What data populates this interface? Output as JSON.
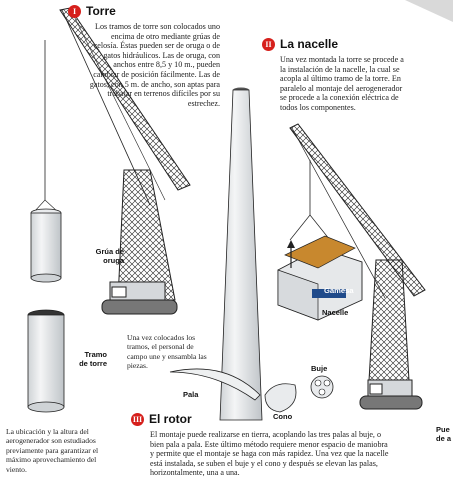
{
  "sections": {
    "torre": {
      "number": "I",
      "title": "Torre",
      "body": "Los tramos de torre son colocados uno encima de otro mediante grúas de celosía. Éstas pueden ser de oruga o de gatos hidráulicos. Las de oruga, con anchos entre 8,5 y 10 m., pueden cambiar de posición fácilmente. Las de gatos, con 5 m. de ancho, son aptas para trabajar en terrenos difíciles por su estrechez."
    },
    "nacelle": {
      "number": "II",
      "title": "La nacelle",
      "body": "Una vez montada la torre se procede a la instalación de la nacelle, la cual se acopla al último tramo de la torre. En paralelo al montaje del aerogenerador se procede a la conexión eléctrica de todos los componentes."
    },
    "rotor": {
      "number": "III",
      "title": "El rotor",
      "body": "El montaje puede realizarse en tierra, acoplando las tres palas al buje, o bien pala a pala. Este último método requiere menor espacio de maniobra y permite que el montaje se haga con más rapidez. Una vez que la nacelle está instalada, se suben el buje y el cono y después se elevan las palas, horizontalmente, una a una."
    }
  },
  "labels": {
    "grua_oruga": "Grúa de oruga",
    "tramo_torre": "Tramo de torre",
    "nacelle": "Nacelle",
    "pala": "Pala",
    "buje": "Buje",
    "cono": "Cono",
    "brand": "Gamesa",
    "cut_label": "Pue de a"
  },
  "notes": {
    "tramos": "Una vez colocados los tramos, el personal de campo une y ensambla las piezas.",
    "ubicacion": "La ubicación y la altura del aerogenerador son estudiados previamente para garantizar el máximo aprovechamiento del viento."
  }
}
